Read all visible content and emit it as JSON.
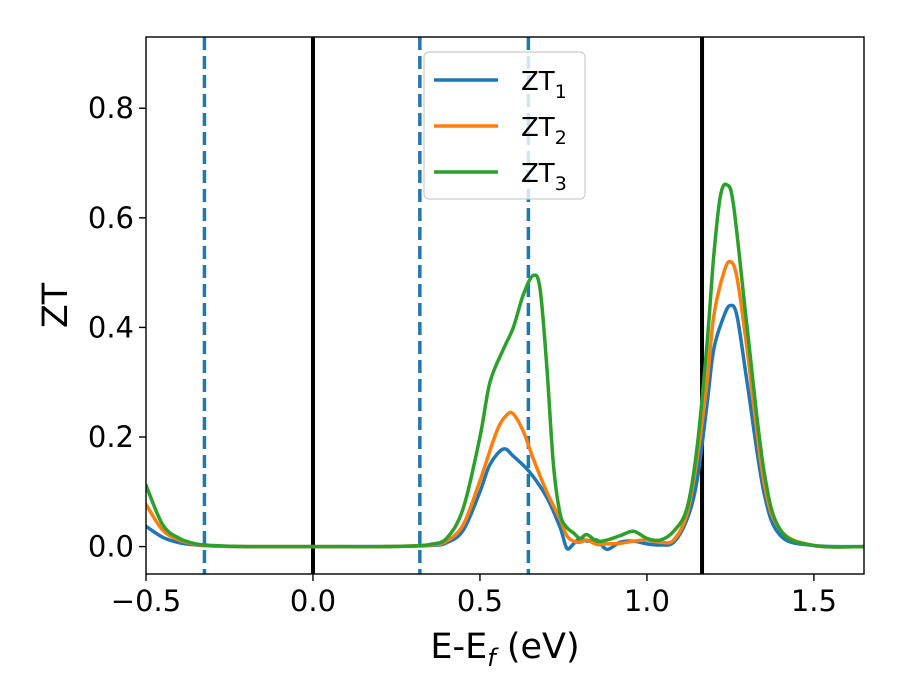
{
  "chart_data": {
    "type": "line",
    "xlabel": "E-E",
    "xlabel_sub": "f",
    "xlabel_unit": " (eV)",
    "ylabel": "ZT",
    "xlim": [
      -0.5,
      1.65
    ],
    "ylim": [
      -0.05,
      0.93
    ],
    "x_ticks": [
      -0.5,
      0.0,
      0.5,
      1.0,
      1.5
    ],
    "x_tick_labels": [
      "−0.5",
      "0.0",
      "0.5",
      "1.0",
      "1.5"
    ],
    "y_ticks": [
      0.0,
      0.2,
      0.4,
      0.6,
      0.8
    ],
    "y_tick_labels": [
      "0.0",
      "0.2",
      "0.4",
      "0.6",
      "0.8"
    ],
    "grid": false,
    "legend_position": "top-center",
    "vertical_lines": [
      {
        "x": -0.325,
        "style": "dashed",
        "color": "#1f77b4"
      },
      {
        "x": 0.0,
        "style": "solid",
        "color": "#000000"
      },
      {
        "x": 0.32,
        "style": "dashed",
        "color": "#1f77b4"
      },
      {
        "x": 0.645,
        "style": "dashed",
        "color": "#1f77b4"
      },
      {
        "x": 1.165,
        "style": "solid",
        "color": "#000000"
      }
    ],
    "series": [
      {
        "name": "ZT",
        "subscript": "1",
        "color": "#1f77b4",
        "x": [
          -0.5,
          -0.45,
          -0.4,
          -0.35,
          -0.3,
          -0.2,
          0.0,
          0.2,
          0.35,
          0.4,
          0.45,
          0.5,
          0.53,
          0.57,
          0.6,
          0.65,
          0.7,
          0.74,
          0.76,
          0.78,
          0.8,
          0.82,
          0.85,
          0.88,
          0.92,
          0.96,
          1.0,
          1.04,
          1.08,
          1.12,
          1.15,
          1.18,
          1.2,
          1.23,
          1.25,
          1.27,
          1.3,
          1.35,
          1.4,
          1.5,
          1.65
        ],
        "y": [
          0.037,
          0.017,
          0.007,
          0.003,
          0.001,
          0.0,
          0.0,
          0.0,
          0.002,
          0.007,
          0.03,
          0.1,
          0.15,
          0.178,
          0.165,
          0.135,
          0.09,
          0.035,
          -0.003,
          0.005,
          0.015,
          0.01,
          0.012,
          -0.005,
          0.008,
          0.01,
          0.005,
          0.003,
          0.008,
          0.05,
          0.12,
          0.26,
          0.36,
          0.42,
          0.44,
          0.42,
          0.3,
          0.1,
          0.02,
          0.002,
          0.0
        ]
      },
      {
        "name": "ZT",
        "subscript": "2",
        "color": "#ff7f0e",
        "x": [
          -0.5,
          -0.45,
          -0.4,
          -0.35,
          -0.3,
          -0.2,
          0.0,
          0.2,
          0.35,
          0.4,
          0.45,
          0.5,
          0.55,
          0.58,
          0.6,
          0.63,
          0.66,
          0.7,
          0.74,
          0.76,
          0.78,
          0.8,
          0.82,
          0.85,
          0.88,
          0.92,
          0.96,
          1.0,
          1.04,
          1.08,
          1.12,
          1.15,
          1.18,
          1.2,
          1.23,
          1.25,
          1.27,
          1.3,
          1.35,
          1.4,
          1.5,
          1.65
        ],
        "y": [
          0.077,
          0.03,
          0.012,
          0.004,
          0.001,
          0.0,
          0.0,
          0.0,
          0.003,
          0.01,
          0.04,
          0.12,
          0.21,
          0.24,
          0.242,
          0.21,
          0.16,
          0.1,
          0.05,
          0.02,
          0.01,
          0.008,
          0.012,
          0.004,
          0.005,
          0.006,
          0.01,
          0.012,
          0.008,
          0.012,
          0.06,
          0.16,
          0.3,
          0.42,
          0.5,
          0.52,
          0.49,
          0.36,
          0.12,
          0.03,
          0.002,
          0.0
        ]
      },
      {
        "name": "ZT",
        "subscript": "3",
        "color": "#2ca02c",
        "x": [
          -0.5,
          -0.45,
          -0.4,
          -0.35,
          -0.3,
          -0.2,
          0.0,
          0.2,
          0.3,
          0.35,
          0.4,
          0.45,
          0.5,
          0.53,
          0.57,
          0.6,
          0.63,
          0.66,
          0.68,
          0.7,
          0.72,
          0.74,
          0.76,
          0.78,
          0.8,
          0.82,
          0.85,
          0.88,
          0.92,
          0.96,
          1.0,
          1.04,
          1.08,
          1.12,
          1.15,
          1.18,
          1.2,
          1.22,
          1.24,
          1.26,
          1.3,
          1.35,
          1.4,
          1.5,
          1.65
        ],
        "y": [
          0.112,
          0.04,
          0.015,
          0.005,
          0.002,
          0.0,
          0.0,
          0.0,
          0.001,
          0.004,
          0.015,
          0.07,
          0.2,
          0.3,
          0.36,
          0.4,
          0.46,
          0.495,
          0.47,
          0.33,
          0.15,
          0.06,
          0.035,
          0.025,
          0.015,
          0.022,
          0.01,
          0.012,
          0.02,
          0.028,
          0.015,
          0.012,
          0.028,
          0.07,
          0.18,
          0.37,
          0.53,
          0.64,
          0.66,
          0.62,
          0.4,
          0.14,
          0.03,
          0.002,
          0.0
        ]
      }
    ]
  }
}
